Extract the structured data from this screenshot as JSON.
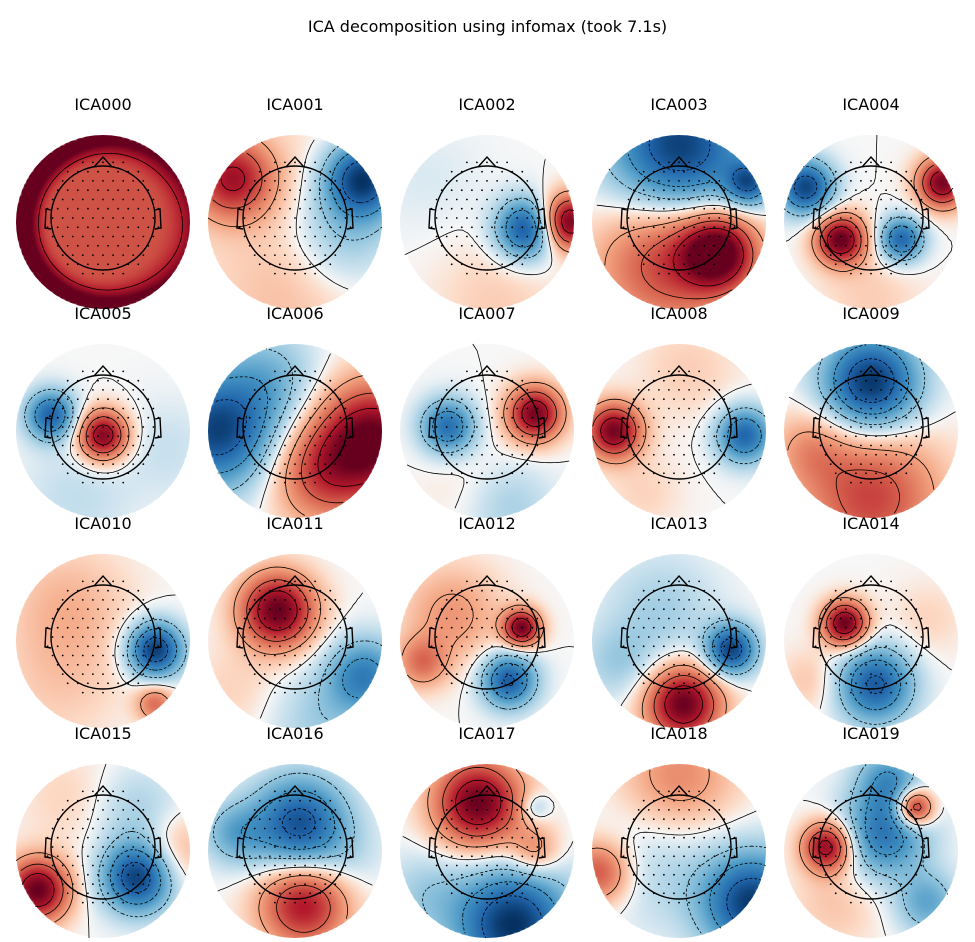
{
  "title": "ICA decomposition using infomax (took 7.1s)",
  "colors": {
    "positive": "#b2182b",
    "negative": "#2166ac",
    "neutral": "#f7f7f7",
    "outline": "#000000"
  },
  "chart_data": {
    "type": "heatmap",
    "title": "ICA decomposition using infomax (took 7.1s)",
    "layout": {
      "rows": 4,
      "cols": 5
    },
    "colormap": "RdBu_r",
    "components": [
      {
        "name": "ICA000",
        "bias": 0.55,
        "blobs": [
          [
            0.0,
            0.05,
            0.05,
            0.0
          ]
        ],
        "rim": [
          {
            "a": 200,
            "w": 45,
            "v": 1.0
          },
          {
            "a": 270,
            "w": 70,
            "v": 0.6
          },
          {
            "a": 130,
            "w": 50,
            "v": 0.55
          },
          {
            "a": 90,
            "w": 40,
            "v": 0.5
          }
        ]
      },
      {
        "name": "ICA001",
        "bias": 0.05,
        "blobs": [
          [
            -0.72,
            -0.5,
            0.32,
            0.75
          ],
          [
            0.78,
            -0.5,
            0.3,
            -0.95
          ],
          [
            0.55,
            0.1,
            0.45,
            -0.3
          ],
          [
            -0.1,
            0.8,
            0.5,
            0.12
          ],
          [
            0.0,
            -0.2,
            0.5,
            0.06
          ]
        ]
      },
      {
        "name": "ICA002",
        "bias": 0.0,
        "blobs": [
          [
            0.93,
            0.0,
            0.22,
            1.0
          ],
          [
            0.45,
            0.08,
            0.24,
            -0.85
          ],
          [
            0.1,
            0.9,
            0.5,
            0.12
          ],
          [
            -0.7,
            -0.5,
            0.45,
            -0.06
          ]
        ]
      },
      {
        "name": "ICA003",
        "bias": 0.0,
        "blobs": [
          [
            0.0,
            -0.85,
            0.55,
            -0.95
          ],
          [
            0.45,
            0.35,
            0.3,
            1.0
          ],
          [
            -0.15,
            0.45,
            0.55,
            0.6
          ],
          [
            0.8,
            -0.45,
            0.18,
            -0.7
          ]
        ]
      },
      {
        "name": "ICA004",
        "bias": 0.0,
        "blobs": [
          [
            -0.35,
            0.2,
            0.2,
            1.0
          ],
          [
            0.82,
            -0.45,
            0.2,
            0.95
          ],
          [
            0.35,
            0.2,
            0.18,
            -0.75
          ],
          [
            -0.75,
            -0.4,
            0.22,
            -0.9
          ],
          [
            0.0,
            0.85,
            0.4,
            0.12
          ]
        ]
      },
      {
        "name": "ICA005",
        "bias": 0.0,
        "blobs": [
          [
            0.0,
            0.05,
            0.2,
            0.95
          ],
          [
            -0.6,
            -0.18,
            0.2,
            -0.75
          ],
          [
            0.75,
            0.2,
            0.4,
            -0.1
          ],
          [
            -0.3,
            0.75,
            0.45,
            -0.12
          ]
        ]
      },
      {
        "name": "ICA006",
        "bias": 0.0,
        "blobs": [
          [
            0.9,
            0.1,
            0.45,
            1.0
          ],
          [
            -0.9,
            0.0,
            0.45,
            -0.9
          ],
          [
            0.3,
            0.5,
            0.4,
            0.5
          ],
          [
            -0.3,
            -0.6,
            0.4,
            -0.3
          ]
        ]
      },
      {
        "name": "ICA007",
        "bias": 0.0,
        "blobs": [
          [
            0.55,
            -0.2,
            0.22,
            0.95
          ],
          [
            -0.45,
            -0.05,
            0.22,
            -0.7
          ],
          [
            0.25,
            0.85,
            0.35,
            -0.2
          ],
          [
            -0.2,
            0.6,
            0.4,
            0.06
          ]
        ]
      },
      {
        "name": "ICA008",
        "bias": 0.0,
        "blobs": [
          [
            -0.75,
            0.0,
            0.22,
            0.95
          ],
          [
            0.75,
            0.05,
            0.22,
            -0.75
          ],
          [
            0.1,
            -0.7,
            0.4,
            0.12
          ],
          [
            -0.4,
            0.7,
            0.3,
            0.1
          ]
        ]
      },
      {
        "name": "ICA009",
        "bias": 0.0,
        "blobs": [
          [
            0.0,
            -0.55,
            0.38,
            -1.0
          ],
          [
            0.0,
            0.75,
            0.55,
            0.6
          ],
          [
            -0.7,
            0.2,
            0.3,
            0.25
          ]
        ]
      },
      {
        "name": "ICA010",
        "bias": 0.0,
        "blobs": [
          [
            0.6,
            0.1,
            0.22,
            -0.95
          ],
          [
            0.6,
            0.72,
            0.15,
            0.45
          ],
          [
            -0.4,
            -0.4,
            0.5,
            0.2
          ],
          [
            -0.5,
            0.5,
            0.5,
            0.12
          ]
        ]
      },
      {
        "name": "ICA011",
        "bias": 0.0,
        "blobs": [
          [
            -0.2,
            -0.35,
            0.3,
            1.0
          ],
          [
            0.8,
            0.4,
            0.3,
            -0.6
          ],
          [
            0.3,
            0.9,
            0.4,
            -0.2
          ],
          [
            -0.7,
            0.55,
            0.35,
            0.1
          ]
        ]
      },
      {
        "name": "ICA012",
        "bias": 0.0,
        "blobs": [
          [
            0.4,
            -0.15,
            0.15,
            0.95
          ],
          [
            0.25,
            0.45,
            0.22,
            -0.8
          ],
          [
            -0.4,
            -0.3,
            0.4,
            0.3
          ],
          [
            -0.75,
            0.25,
            0.2,
            0.4
          ]
        ]
      },
      {
        "name": "ICA013",
        "bias": 0.0,
        "blobs": [
          [
            0.05,
            0.72,
            0.3,
            1.0
          ],
          [
            0.6,
            0.1,
            0.2,
            -0.9
          ],
          [
            -0.2,
            -0.35,
            0.45,
            -0.2
          ],
          [
            -0.7,
            0.25,
            0.3,
            -0.2
          ]
        ]
      },
      {
        "name": "ICA014",
        "bias": 0.0,
        "blobs": [
          [
            -0.3,
            -0.2,
            0.18,
            1.0
          ],
          [
            0.05,
            0.5,
            0.3,
            -0.8
          ],
          [
            0.65,
            -0.25,
            0.3,
            0.1
          ],
          [
            -0.7,
            0.45,
            0.25,
            0.15
          ]
        ]
      },
      {
        "name": "ICA015",
        "bias": 0.0,
        "blobs": [
          [
            -0.75,
            0.45,
            0.25,
            1.0
          ],
          [
            0.4,
            0.3,
            0.28,
            -0.95
          ],
          [
            0.4,
            -0.45,
            0.35,
            -0.2
          ],
          [
            0.8,
            0.0,
            0.3,
            0.25
          ],
          [
            -0.4,
            -0.6,
            0.4,
            0.1
          ]
        ]
      },
      {
        "name": "ICA016",
        "bias": 0.0,
        "blobs": [
          [
            0.05,
            -0.3,
            0.38,
            -0.85
          ],
          [
            0.1,
            0.6,
            0.35,
            0.8
          ],
          [
            0.6,
            0.1,
            0.3,
            -0.1
          ],
          [
            -0.7,
            -0.2,
            0.25,
            -0.35
          ]
        ]
      },
      {
        "name": "ICA017",
        "bias": 0.0,
        "blobs": [
          [
            -0.1,
            -0.55,
            0.35,
            1.0
          ],
          [
            0.3,
            0.85,
            0.45,
            -1.0
          ],
          [
            0.55,
            0.0,
            0.2,
            0.35
          ],
          [
            0.55,
            -0.5,
            0.12,
            -0.25
          ],
          [
            -0.7,
            0.5,
            0.35,
            -0.2
          ]
        ]
      },
      {
        "name": "ICA018",
        "bias": 0.0,
        "blobs": [
          [
            0.85,
            0.6,
            0.4,
            -0.95
          ],
          [
            0.0,
            -0.85,
            0.45,
            0.35
          ],
          [
            -0.92,
            0.25,
            0.25,
            0.55
          ],
          [
            -0.2,
            0.2,
            0.5,
            -0.15
          ]
        ]
      },
      {
        "name": "ICA019",
        "bias": 0.0,
        "blobs": [
          [
            -0.5,
            -0.05,
            0.2,
            0.9
          ],
          [
            0.5,
            -0.5,
            0.15,
            0.9
          ],
          [
            0.15,
            -0.2,
            0.35,
            -0.65
          ],
          [
            0.2,
            -0.82,
            0.25,
            -0.45
          ],
          [
            0.65,
            0.6,
            0.25,
            -0.4
          ],
          [
            -0.4,
            0.6,
            0.35,
            0.15
          ]
        ]
      }
    ]
  }
}
